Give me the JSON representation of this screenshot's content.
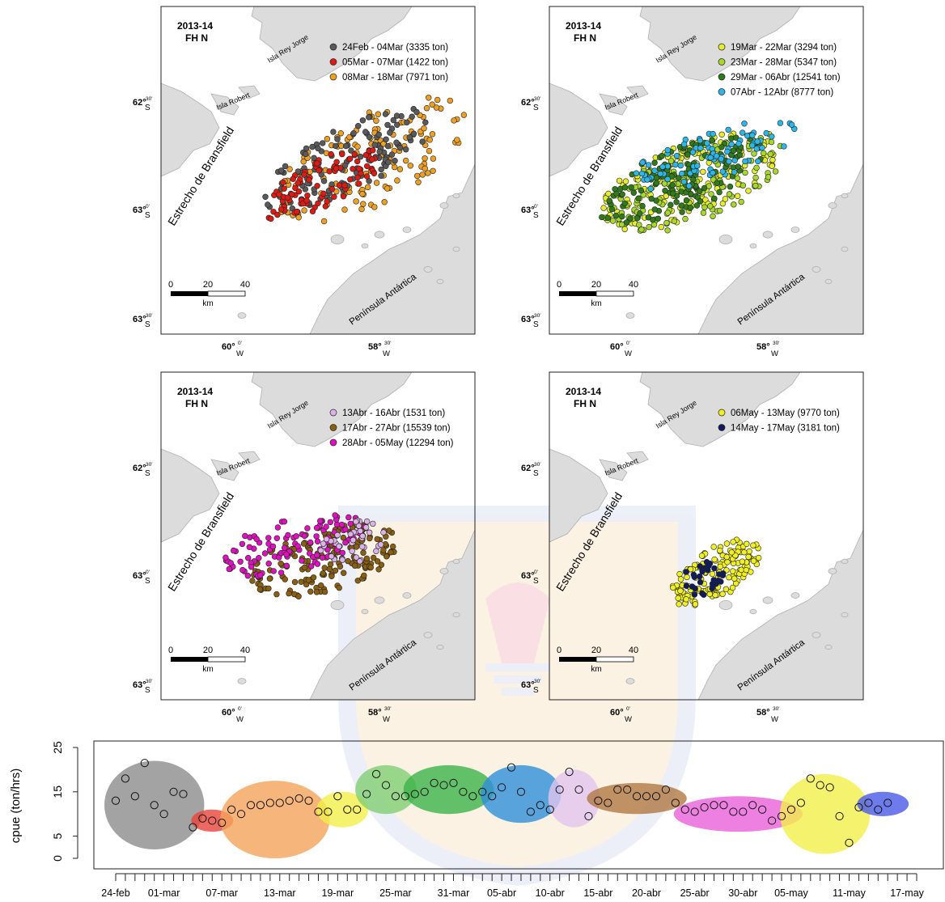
{
  "panels": [
    {
      "id": "p1",
      "season": "2013-14",
      "subtitle": "FH N",
      "legend": [
        {
          "label": "24Feb - 04Mar (3335 ton)",
          "color": "#5a5a5a"
        },
        {
          "label": "05Mar - 07Mar (1422 ton)",
          "color": "#e01a12"
        },
        {
          "label": "08Mar - 18Mar (7971 ton)",
          "color": "#f0a020"
        }
      ]
    },
    {
      "id": "p2",
      "season": "2013-14",
      "subtitle": "FH N",
      "legend": [
        {
          "label": "19Mar - 22Mar (3294 ton)",
          "color": "#e6ee2c"
        },
        {
          "label": "23Mar - 28Mar (5347 ton)",
          "color": "#a6d82a"
        },
        {
          "label": "29Mar - 06Abr (12541 ton)",
          "color": "#2f7a1a"
        },
        {
          "label": "07Abr - 12Abr (8777 ton)",
          "color": "#2bb8e8"
        }
      ]
    },
    {
      "id": "p3",
      "season": "2013-14",
      "subtitle": "FH N",
      "legend": [
        {
          "label": "13Abr - 16Abr (1531 ton)",
          "color": "#dcb2e8"
        },
        {
          "label": "17Abr - 27Abr (15539 ton)",
          "color": "#8a5f10"
        },
        {
          "label": "28Abr - 05May (12294 ton)",
          "color": "#e010c0"
        }
      ]
    },
    {
      "id": "p4",
      "season": "2013-14",
      "subtitle": "FH N",
      "legend": [
        {
          "label": "06May - 13May (9770 ton)",
          "color": "#f0f020"
        },
        {
          "label": "14May - 17May (3181 ton)",
          "color": "#101a5c"
        }
      ]
    }
  ],
  "map_labels": {
    "isla_rey_jorge": "Isla Rey Jorge",
    "isla_robert": "Isla Robert",
    "estrecho": "Estrecho de Bransfield",
    "peninsula": "Península Antártica",
    "lat_62_30": "62°",
    "lat_62_30_min": "30'",
    "lat_63_0": "63°",
    "lat_63_0_min": "0'",
    "lat_63_30": "63°",
    "lat_63_30_min": "30'",
    "lat_hemi": "S",
    "lon_60_0": "60°",
    "lon_60_0_min": "0'",
    "lon_58_30": "58°",
    "lon_58_30_min": "30'",
    "lon_hemi": "W",
    "scale_0": "0",
    "scale_20": "20",
    "scale_40": "40",
    "scale_unit": "km"
  },
  "chart_data": {
    "type": "scatter",
    "ylabel": "cpue (ton/hrs)",
    "xlabel": "",
    "ylim": [
      0,
      25
    ],
    "yticks": [
      0,
      5,
      15,
      25
    ],
    "x_tick_labels": [
      "24-feb",
      "01-mar",
      "07-mar",
      "13-mar",
      "19-mar",
      "25-mar",
      "31-mar",
      "05-abr",
      "10-abr",
      "15-abr",
      "20-abr",
      "25-abr",
      "30-abr",
      "05-may",
      "11-may",
      "17-may"
    ],
    "label_day_index": [
      0,
      5,
      11,
      17,
      23,
      29,
      35,
      40,
      45,
      50,
      55,
      60,
      65,
      70,
      76,
      82
    ],
    "days_range": [
      0,
      83
    ],
    "points": [
      [
        0,
        13
      ],
      [
        1,
        18
      ],
      [
        2,
        14
      ],
      [
        3,
        21.5
      ],
      [
        4,
        12
      ],
      [
        5,
        10
      ],
      [
        6,
        15
      ],
      [
        7,
        14.5
      ],
      [
        8,
        7
      ],
      [
        9,
        9
      ],
      [
        10,
        8.5
      ],
      [
        11,
        8
      ],
      [
        12,
        11
      ],
      [
        13,
        10
      ],
      [
        14,
        12
      ],
      [
        15,
        12
      ],
      [
        16,
        12.5
      ],
      [
        17,
        12.5
      ],
      [
        18,
        13
      ],
      [
        19,
        13.5
      ],
      [
        20,
        13
      ],
      [
        21,
        10.5
      ],
      [
        22,
        10.5
      ],
      [
        23,
        14
      ],
      [
        24,
        11
      ],
      [
        25,
        11
      ],
      [
        26,
        14.5
      ],
      [
        27,
        19
      ],
      [
        28,
        16.5
      ],
      [
        29,
        14
      ],
      [
        30,
        14
      ],
      [
        31,
        14.5
      ],
      [
        32,
        15
      ],
      [
        33,
        17
      ],
      [
        34,
        16.5
      ],
      [
        35,
        17
      ],
      [
        36,
        15
      ],
      [
        37,
        14
      ],
      [
        38,
        15
      ],
      [
        39,
        14
      ],
      [
        40,
        16
      ],
      [
        41,
        20.5
      ],
      [
        42,
        15
      ],
      [
        43,
        10.5
      ],
      [
        44,
        12
      ],
      [
        45,
        11
      ],
      [
        46,
        15.5
      ],
      [
        47,
        19.5
      ],
      [
        48,
        15.5
      ],
      [
        49,
        9.5
      ],
      [
        50,
        13
      ],
      [
        51,
        12.5
      ],
      [
        52,
        15.5
      ],
      [
        53,
        15.5
      ],
      [
        54,
        14
      ],
      [
        55,
        14
      ],
      [
        56,
        14
      ],
      [
        57,
        15.5
      ],
      [
        58,
        12.5
      ],
      [
        59,
        11
      ],
      [
        60,
        10.5
      ],
      [
        61,
        11.5
      ],
      [
        62,
        12
      ],
      [
        63,
        12
      ],
      [
        64,
        10.5
      ],
      [
        65,
        10.5
      ],
      [
        66,
        12
      ],
      [
        67,
        11
      ],
      [
        68,
        8.5
      ],
      [
        69,
        9.5
      ],
      [
        70,
        11
      ],
      [
        71,
        12.5
      ],
      [
        72,
        18
      ],
      [
        73,
        16.5
      ],
      [
        74,
        16
      ],
      [
        75,
        9.5
      ],
      [
        76,
        3.5
      ],
      [
        77,
        11.5
      ],
      [
        78,
        12.5
      ],
      [
        79,
        11
      ],
      [
        80,
        12.5
      ]
    ],
    "groups": [
      {
        "color": "#8c8c8c",
        "days": [
          0,
          8
        ],
        "y": [
          2,
          22
        ]
      },
      {
        "color": "#e8443a",
        "days": [
          9,
          11
        ],
        "y": [
          6,
          11
        ]
      },
      {
        "color": "#f4a35a",
        "days": [
          12,
          21
        ],
        "y": [
          0,
          17.5
        ]
      },
      {
        "color": "#f2ef4a",
        "days": [
          22,
          25
        ],
        "y": [
          7,
          15
        ]
      },
      {
        "color": "#7fce72",
        "days": [
          26,
          30
        ],
        "y": [
          10,
          21
        ]
      },
      {
        "color": "#3cb34a",
        "days": [
          31,
          38
        ],
        "y": [
          10,
          21
        ]
      },
      {
        "color": "#2f8ed8",
        "days": [
          39,
          45
        ],
        "y": [
          8,
          21
        ]
      },
      {
        "color": "#e2c4ee",
        "days": [
          46,
          49
        ],
        "y": [
          7,
          20
        ]
      },
      {
        "color": "#b07842",
        "days": [
          50,
          58
        ],
        "y": [
          10,
          17
        ]
      },
      {
        "color": "#e860d8",
        "days": [
          59,
          70
        ],
        "y": [
          6,
          14
        ]
      },
      {
        "color": "#f2ef4a",
        "days": [
          70,
          77
        ],
        "y": [
          1,
          19
        ]
      },
      {
        "color": "#4a5ae8",
        "days": [
          78,
          81
        ],
        "y": [
          9.5,
          15
        ]
      }
    ]
  }
}
